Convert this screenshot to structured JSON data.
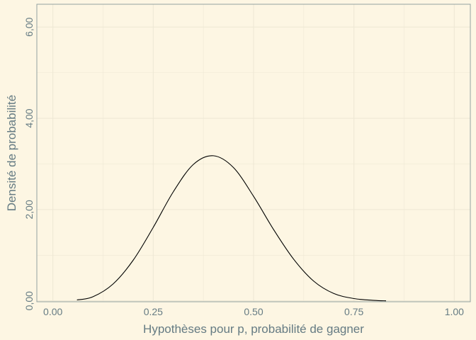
{
  "chart_data": {
    "type": "line",
    "xlabel": "Hypothèses pour p, probabilité de gagner",
    "ylabel": "Densité de probabilité",
    "xlim": [
      -0.04,
      1.04
    ],
    "ylim": [
      -0.02,
      6.5
    ],
    "x_ticks": [
      {
        "value": 0.0,
        "label": "0.00"
      },
      {
        "value": 0.25,
        "label": "0.25"
      },
      {
        "value": 0.5,
        "label": "0.50"
      },
      {
        "value": 0.75,
        "label": "0.75"
      },
      {
        "value": 1.0,
        "label": "1.00"
      }
    ],
    "y_ticks": [
      {
        "value": 0,
        "label": "0,00"
      },
      {
        "value": 2,
        "label": "2,00"
      },
      {
        "value": 4,
        "label": "4,00"
      },
      {
        "value": 6,
        "label": "6,00"
      }
    ],
    "grid": true,
    "series": [
      {
        "color": "#000000",
        "x": [
          0.06,
          0.1,
          0.15,
          0.2,
          0.25,
          0.3,
          0.35,
          0.4,
          0.45,
          0.5,
          0.55,
          0.6,
          0.65,
          0.7,
          0.75,
          0.8,
          0.83
        ],
        "y": [
          0.02,
          0.09,
          0.37,
          0.89,
          1.61,
          2.39,
          2.99,
          3.18,
          2.92,
          2.29,
          1.56,
          0.91,
          0.43,
          0.16,
          0.05,
          0.01,
          0.0
        ]
      }
    ]
  },
  "colors": {
    "background": "#fdf6e3",
    "grid": "#eee8d5",
    "axis_text": "#657b83",
    "panel_border": "#93a1a1",
    "line": "#000000"
  }
}
